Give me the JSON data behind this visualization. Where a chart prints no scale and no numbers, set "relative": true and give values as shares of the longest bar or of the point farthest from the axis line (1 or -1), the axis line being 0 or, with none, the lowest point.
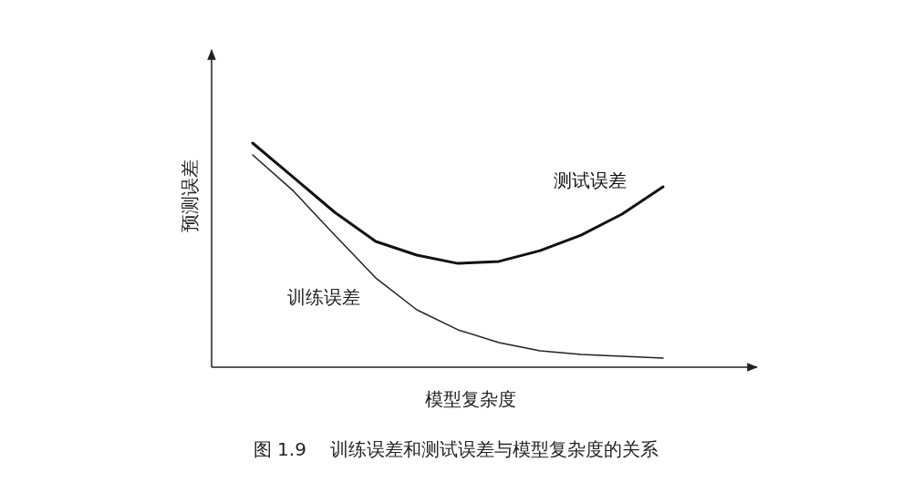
{
  "chart_data": {
    "type": "line",
    "relative": true,
    "xlabel": "模型复杂度",
    "ylabel": "预测误差",
    "categories": [
      null,
      null,
      null,
      null,
      null,
      null,
      null,
      null,
      null,
      null,
      null
    ],
    "series": [
      {
        "name": "测试误差",
        "color": "#111111",
        "values": [
          1,
          0.846,
          0.691,
          0.561,
          0.5,
          0.463,
          0.472,
          0.52,
          0.589,
          0.683,
          0.805
        ]
      },
      {
        "name": "训练误差",
        "color": "#222222",
        "values": [
          0.947,
          0.785,
          0.589,
          0.398,
          0.256,
          0.167,
          0.11,
          0.073,
          0.057,
          0.049,
          0.041
        ]
      }
    ],
    "annotations": [
      "图 1.9　 训练误差和测试误差与模型复杂度的关系"
    ],
    "marker": "none",
    "line_style": "solid"
  }
}
